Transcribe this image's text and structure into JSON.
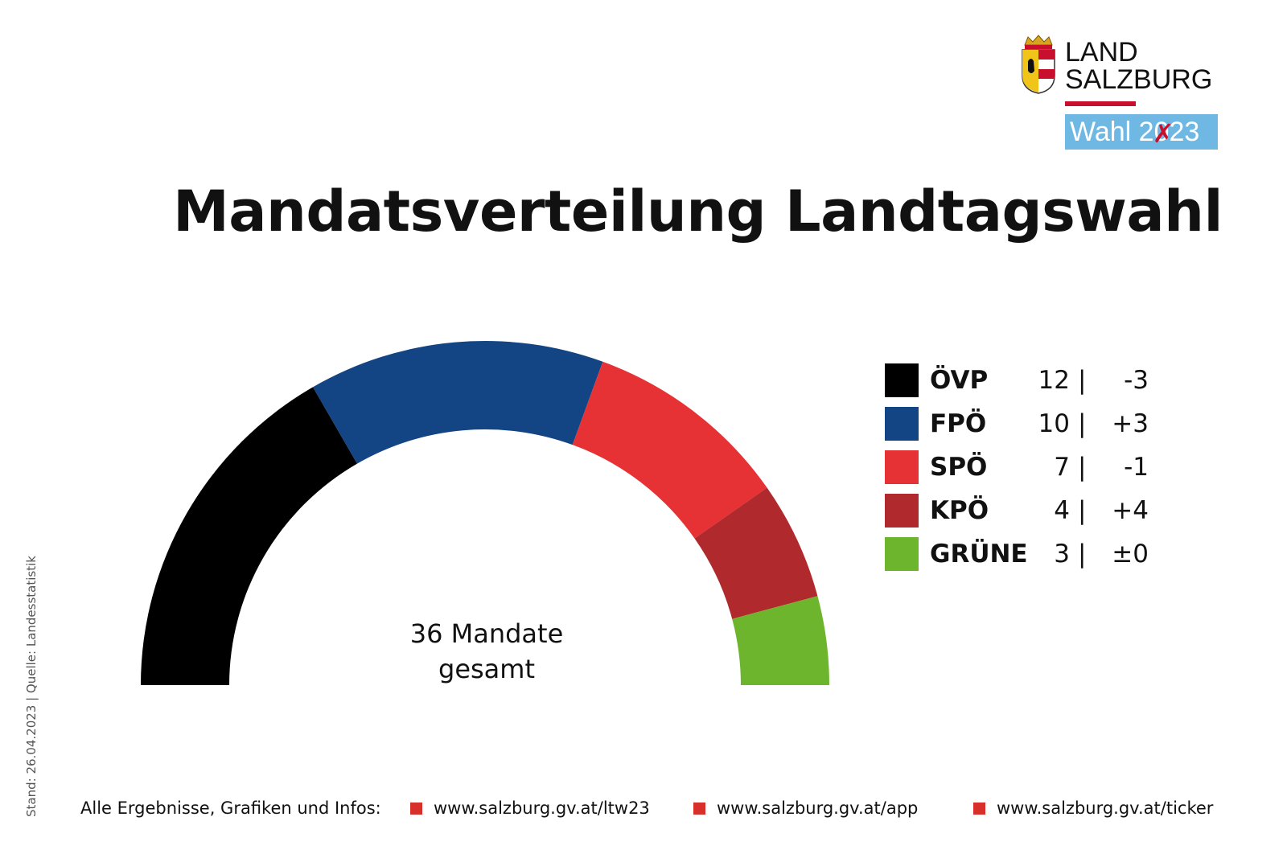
{
  "logo": {
    "line1": "LAND",
    "line2": "SALZBURG",
    "badge_pre": "Wahl 2",
    "badge_mark": "0",
    "badge_post": "23"
  },
  "title": "Mandatsverteilung Landtagswahl",
  "center_label": {
    "line1": "36 Mandate",
    "line2": "gesamt"
  },
  "side_note": "Stand: 26.04.2023 | Quelle: Landesstatistik",
  "footer": {
    "lead": "Alle Ergebnisse, Grafiken und Infos:",
    "links": [
      "www.salzburg.gv.at/ltw23",
      "www.salzburg.gv.at/app",
      "www.salzburg.gv.at/ticker"
    ],
    "bullet_color": "#d7302a"
  },
  "chart_data": {
    "type": "pie",
    "variant": "half-donut parliament",
    "title": "Mandatsverteilung Landtagswahl",
    "total": 36,
    "categories": [
      "ÖVP",
      "FPÖ",
      "SPÖ",
      "KPÖ",
      "GRÜNE"
    ],
    "values": [
      12,
      10,
      7,
      4,
      3
    ],
    "changes": [
      "-3",
      "+3",
      "-1",
      "+4",
      "±0"
    ],
    "colors": [
      "#000000",
      "#134483",
      "#e63135",
      "#b0292c",
      "#6db52c"
    ],
    "legend_position": "right"
  }
}
